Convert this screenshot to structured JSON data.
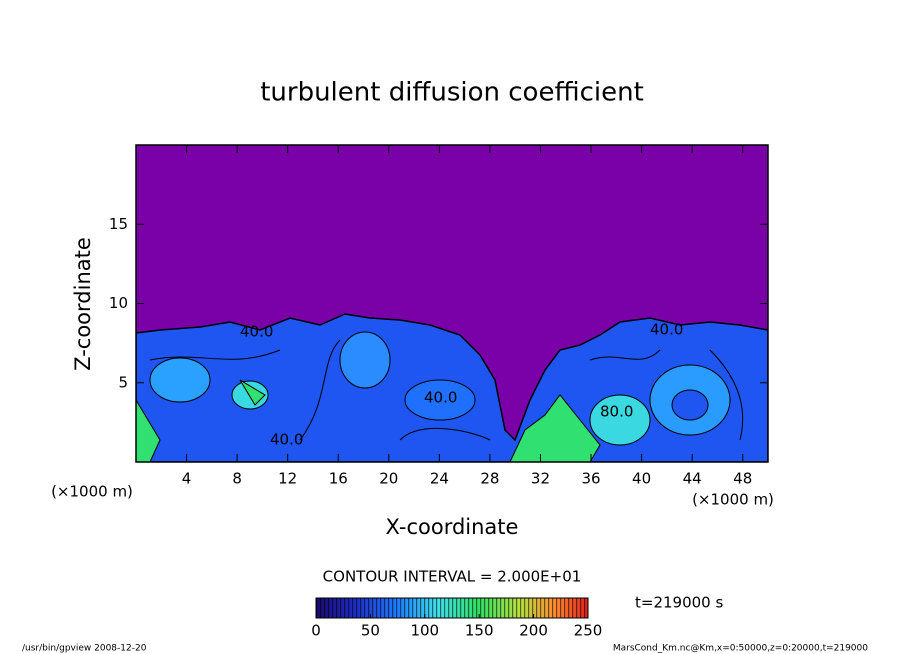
{
  "chart_data": {
    "type": "contour",
    "title": "turbulent diffusion coefficient",
    "x_label": "X-coordinate",
    "y_label": "Z-coordinate",
    "x_units": "(×1000 m)",
    "y_units": "(×1000 m)",
    "xlim": [
      0,
      50
    ],
    "xticks": [
      4,
      8,
      12,
      16,
      20,
      24,
      28,
      32,
      36,
      40,
      44,
      48
    ],
    "ylim": [
      0,
      20
    ],
    "yticks": [
      5,
      10,
      15
    ],
    "contour_interval": "CONTOUR INTERVAL = 2.000E+01",
    "contour_labels": [
      "40.0",
      "80.0",
      "40.0",
      "40.0",
      "40.0"
    ],
    "colorbar_lim": [
      0,
      250
    ],
    "colorbar_ticks": [
      0,
      50,
      100,
      150,
      200,
      250
    ],
    "time_label": "t=219000 s",
    "footer_left": "/usr/bin/gpview  2008-12-20",
    "footer_right": "MarsCond_Km.nc@Km,x=0:50000,z=0:20000,t=219000"
  }
}
